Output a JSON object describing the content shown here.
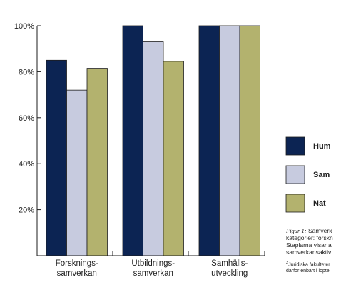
{
  "chart_data": {
    "type": "bar",
    "categories": [
      [
        "Forsknings-",
        "samverkan"
      ],
      [
        "Utbildnings-",
        "samverkan"
      ],
      [
        "Samhälls-",
        "utveckling"
      ]
    ],
    "series": [
      {
        "name": "Hum",
        "color": "#0c2453",
        "values": [
          85,
          100,
          100
        ]
      },
      {
        "name": "Sam",
        "color": "#c7cbdf",
        "values": [
          72,
          93,
          100
        ]
      },
      {
        "name": "Nat",
        "color": "#b3b26e",
        "values": [
          81.5,
          84.5,
          100
        ]
      }
    ],
    "yticks": [
      "20%",
      "40%",
      "60%",
      "80%",
      "100%"
    ],
    "ytick_values": [
      20,
      40,
      60,
      80,
      100
    ],
    "ylim": [
      0,
      100
    ],
    "grid": false,
    "legend_position": "right"
  },
  "caption": {
    "figure_label": "Figur 1:",
    "line1_rest": " Samverk",
    "line2": "kategorier: forskn",
    "line3": "Staplarna visar a",
    "line4": "samverkansaktiv",
    "footnote_marker": "2",
    "footnote_line1": "Juridiska fakulteter",
    "footnote_line2": "därför enbart i löpte"
  }
}
